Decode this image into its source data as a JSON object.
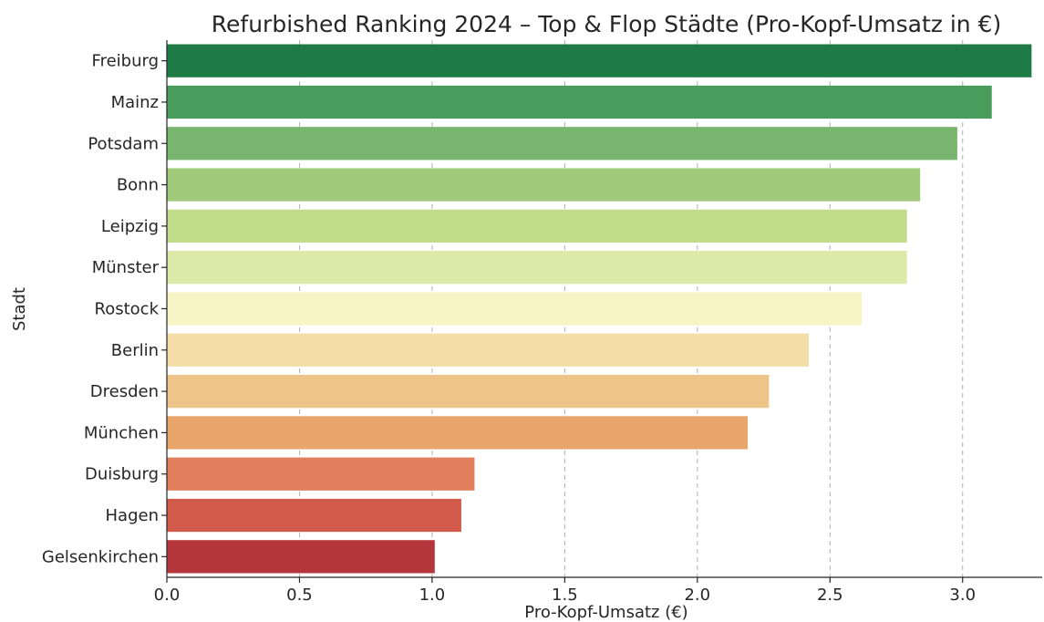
{
  "chart_data": {
    "type": "bar",
    "orientation": "horizontal",
    "title": "Refurbished Ranking 2024 – Top & Flop Städte (Pro-Kopf-Umsatz in €)",
    "xlabel": "Pro-Kopf-Umsatz (€)",
    "ylabel": "Stadt",
    "xlim": [
      0,
      3.3
    ],
    "xticks": [
      0.0,
      0.5,
      1.0,
      1.5,
      2.0,
      2.5,
      3.0
    ],
    "xtick_labels": [
      "0.0",
      "0.5",
      "1.0",
      "1.5",
      "2.0",
      "2.5",
      "3.0"
    ],
    "grid": "x-dashed",
    "categories": [
      "Freiburg",
      "Mainz",
      "Potsdam",
      "Bonn",
      "Leipzig",
      "Münster",
      "Rostock",
      "Berlin",
      "Dresden",
      "München",
      "Duisburg",
      "Hagen",
      "Gelsenkirchen"
    ],
    "values": [
      3.26,
      3.11,
      2.98,
      2.84,
      2.79,
      2.79,
      2.62,
      2.42,
      2.27,
      2.19,
      1.16,
      1.11,
      1.01
    ],
    "colors": [
      "#1e7b46",
      "#4a9c5c",
      "#78b56e",
      "#a0ca79",
      "#c0dc8b",
      "#dde9a9",
      "#f7f5c5",
      "#f2dea6",
      "#eec489",
      "#e8a66d",
      "#e17f5c",
      "#d25a4a",
      "#b5363a"
    ]
  }
}
